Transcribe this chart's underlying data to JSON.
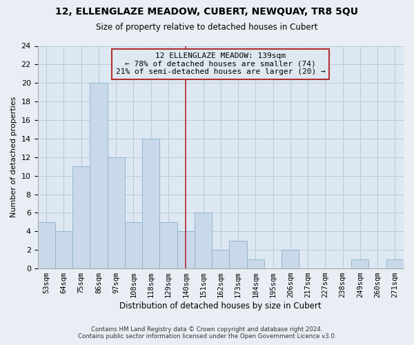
{
  "title": "12, ELLENGLAZE MEADOW, CUBERT, NEWQUAY, TR8 5QU",
  "subtitle": "Size of property relative to detached houses in Cubert",
  "xlabel": "Distribution of detached houses by size in Cubert",
  "ylabel": "Number of detached properties",
  "bin_labels": [
    "53sqm",
    "64sqm",
    "75sqm",
    "86sqm",
    "97sqm",
    "108sqm",
    "118sqm",
    "129sqm",
    "140sqm",
    "151sqm",
    "162sqm",
    "173sqm",
    "184sqm",
    "195sqm",
    "206sqm",
    "217sqm",
    "227sqm",
    "238sqm",
    "249sqm",
    "260sqm",
    "271sqm"
  ],
  "bar_heights": [
    5,
    4,
    11,
    20,
    12,
    5,
    14,
    5,
    4,
    6,
    2,
    3,
    1,
    0,
    2,
    0,
    0,
    0,
    1,
    0,
    1
  ],
  "bar_color": "#c9d9ea",
  "bar_edgecolor": "#8ab0cc",
  "vline_x_index": 8,
  "vline_color": "#b03030",
  "annotation_line1": "12 ELLENGLAZE MEADOW: 139sqm",
  "annotation_line2": "← 78% of detached houses are smaller (74)",
  "annotation_line3": "21% of semi-detached houses are larger (20) →",
  "annotation_box_edgecolor": "#b03030",
  "annotation_bg": "#dde8f0",
  "ylim": [
    0,
    24
  ],
  "yticks": [
    0,
    2,
    4,
    6,
    8,
    10,
    12,
    14,
    16,
    18,
    20,
    22,
    24
  ],
  "footer_line1": "Contains HM Land Registry data © Crown copyright and database right 2024.",
  "footer_line2": "Contains public sector information licensed under the Open Government Licence v3.0.",
  "bg_color": "#e8eef4",
  "plot_bg_color": "#dde8f2",
  "grid_color": "#b8cad8"
}
